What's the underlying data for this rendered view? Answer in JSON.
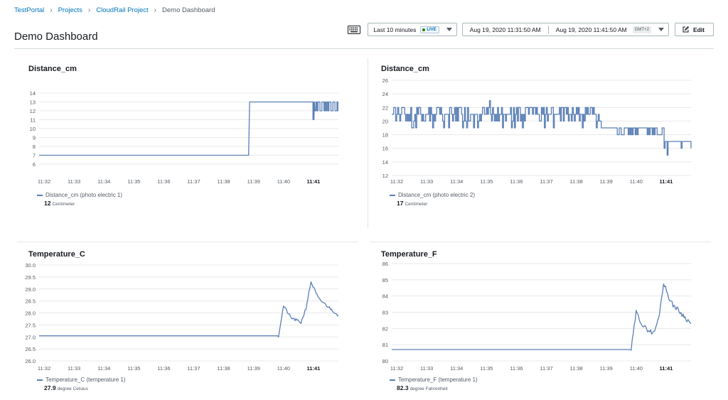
{
  "breadcrumb": [
    "TestPortal",
    "Projects",
    "CloudRail Project",
    "Demo Dashboard"
  ],
  "page_title": "Demo Dashboard",
  "toolbar": {
    "time_select": "Last 10 minutes",
    "live_label": "LIVE",
    "range_start": "Aug 19, 2020 11:31:50 AM",
    "range_end": "Aug 19, 2020 11:41:50 AM",
    "timezone": "GMT+2",
    "edit_label": "Edit"
  },
  "colors": {
    "series": "#5a7fb5",
    "link": "#0073bb",
    "grid": "#e6e6e6"
  },
  "widgets": [
    {
      "title": "Distance_cm",
      "legend_name": "Distance_cm (photo electric 1)",
      "legend_value": "12",
      "legend_unit": "Centimeter"
    },
    {
      "title": "Distance_cm",
      "legend_name": "Distance_cm (photo electric 2)",
      "legend_value": "17",
      "legend_unit": "Centimeter"
    },
    {
      "title": "Temperature_C",
      "legend_name": "Temperature_C (temperature 1)",
      "legend_value": "27.9",
      "legend_unit": "degree Celsius"
    },
    {
      "title": "Temperature_F",
      "legend_name": "Temperature_F (temperature 1)",
      "legend_value": "82.3",
      "legend_unit": "degree Fahrenheit"
    }
  ],
  "chart_data": [
    {
      "type": "line",
      "title": "Distance_cm",
      "x_ticks": [
        "11:32",
        "11:33",
        "11:34",
        "11:35",
        "11:36",
        "11:37",
        "11:38",
        "11:39",
        "11:40",
        "11:41"
      ],
      "x_range": [
        "11:31:50",
        "11:41:50"
      ],
      "y_ticks": [
        6,
        7,
        8,
        9,
        10,
        11,
        12,
        13,
        14
      ],
      "ylim": [
        6,
        14
      ],
      "grid": true,
      "series": [
        {
          "name": "Distance_cm (photo electric 1)",
          "points": [
            [
              "11:31:50",
              7
            ],
            [
              "11:38:50",
              7
            ],
            [
              "11:38:52",
              13
            ],
            [
              "11:40:55",
              13
            ],
            [
              "11:41:00",
              13
            ],
            [
              "11:41:02",
              11
            ],
            [
              "11:41:50",
              12
            ]
          ]
        }
      ]
    },
    {
      "type": "line",
      "title": "Distance_cm",
      "x_ticks": [
        "11:32",
        "11:33",
        "11:34",
        "11:35",
        "11:36",
        "11:37",
        "11:38",
        "11:39",
        "11:40",
        "11:41"
      ],
      "x_range": [
        "11:31:50",
        "11:41:50"
      ],
      "y_ticks": [
        12,
        14,
        16,
        18,
        20,
        22,
        24,
        26
      ],
      "ylim": [
        12,
        26
      ],
      "grid": true,
      "series": [
        {
          "name": "Distance_cm (photo electric 2)",
          "points": [
            [
              "11:31:50",
              21
            ],
            [
              "11:35:05",
              23
            ],
            [
              "11:38:50",
              21
            ],
            [
              "11:39:00",
              19
            ],
            [
              "11:40:50",
              19
            ],
            [
              "11:41:00",
              15
            ],
            [
              "11:41:50",
              17
            ]
          ]
        }
      ]
    },
    {
      "type": "line",
      "title": "Temperature_C",
      "x_ticks": [
        "11:32",
        "11:33",
        "11:34",
        "11:35",
        "11:36",
        "11:37",
        "11:38",
        "11:39",
        "11:40",
        "11:41"
      ],
      "x_range": [
        "11:31:50",
        "11:41:50"
      ],
      "y_ticks": [
        26.0,
        26.5,
        27.0,
        27.5,
        28.0,
        28.5,
        29.0,
        29.5,
        30.0
      ],
      "ylim": [
        26,
        30
      ],
      "grid": true,
      "series": [
        {
          "name": "Temperature_C (temperature 1)",
          "points": [
            [
              "11:31:50",
              27.05
            ],
            [
              "11:39:50",
              27.05
            ],
            [
              "11:40:00",
              28.3
            ],
            [
              "11:40:15",
              27.8
            ],
            [
              "11:40:35",
              27.6
            ],
            [
              "11:40:45",
              28.2
            ],
            [
              "11:40:55",
              29.3
            ],
            [
              "11:41:10",
              28.6
            ],
            [
              "11:41:50",
              27.9
            ]
          ]
        }
      ]
    },
    {
      "type": "line",
      "title": "Temperature_F",
      "x_ticks": [
        "11:32",
        "11:33",
        "11:34",
        "11:35",
        "11:36",
        "11:37",
        "11:38",
        "11:39",
        "11:40",
        "11:41"
      ],
      "x_range": [
        "11:31:50",
        "11:41:50"
      ],
      "y_ticks": [
        80,
        81,
        82,
        83,
        84,
        85,
        86
      ],
      "ylim": [
        80,
        86
      ],
      "grid": true,
      "series": [
        {
          "name": "Temperature_F (temperature 1)",
          "points": [
            [
              "11:31:50",
              80.7
            ],
            [
              "11:39:50",
              80.7
            ],
            [
              "11:40:00",
              83.0
            ],
            [
              "11:40:15",
              82.1
            ],
            [
              "11:40:35",
              81.7
            ],
            [
              "11:40:45",
              82.6
            ],
            [
              "11:40:55",
              84.8
            ],
            [
              "11:41:10",
              83.6
            ],
            [
              "11:41:50",
              82.3
            ]
          ]
        }
      ]
    }
  ]
}
